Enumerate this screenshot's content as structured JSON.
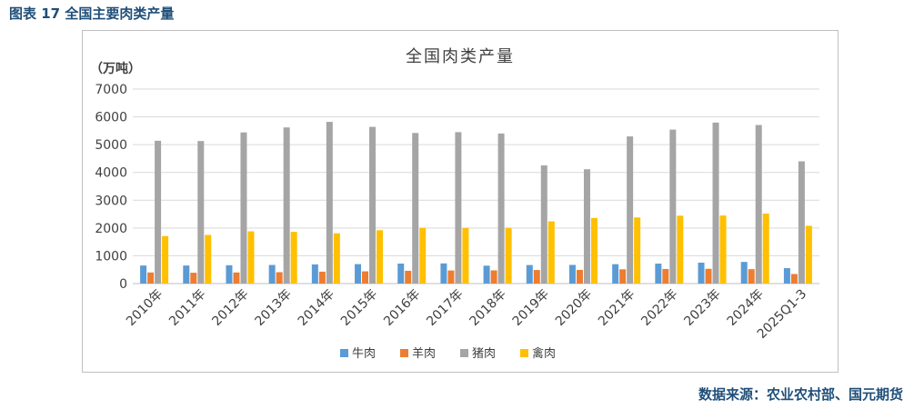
{
  "figure": {
    "caption": "图表 17  全国主要肉类产量",
    "source": "数据来源：农业农村部、国元期货"
  },
  "chart_data": {
    "type": "bar",
    "title": "全国肉类产量",
    "ylabel": "（万吨）",
    "xlabel": "",
    "ylim": [
      0,
      7000
    ],
    "yticks": [
      0,
      1000,
      2000,
      3000,
      4000,
      5000,
      6000,
      7000
    ],
    "grid": true,
    "legend_position": "bottom",
    "categories": [
      "2010年",
      "2011年",
      "2012年",
      "2013年",
      "2014年",
      "2015年",
      "2016年",
      "2017年",
      "2018年",
      "2019年",
      "2020年",
      "2021年",
      "2022年",
      "2023年",
      "2024年",
      "2025Q1-3"
    ],
    "series": [
      {
        "name": "牛肉",
        "color": "#5b9bd5",
        "values": [
          650,
          650,
          660,
          670,
          690,
          700,
          720,
          726,
          644,
          667,
          672,
          698,
          718,
          753,
          779,
          555
        ]
      },
      {
        "name": "羊肉",
        "color": "#ed7d31",
        "values": [
          400,
          390,
          400,
          410,
          428,
          440,
          460,
          471,
          475,
          488,
          492,
          514,
          525,
          531,
          518,
          345
        ]
      },
      {
        "name": "猪肉",
        "color": "#a5a5a5",
        "values": [
          5140,
          5130,
          5440,
          5620,
          5820,
          5640,
          5420,
          5450,
          5400,
          4255,
          4113,
          5296,
          5541,
          5794,
          5706,
          4400
        ]
      },
      {
        "name": "禽肉",
        "color": "#ffc000",
        "values": [
          1710,
          1750,
          1880,
          1860,
          1810,
          1920,
          2000,
          2000,
          2000,
          2239,
          2361,
          2380,
          2443,
          2450,
          2520,
          2080
        ]
      }
    ]
  }
}
